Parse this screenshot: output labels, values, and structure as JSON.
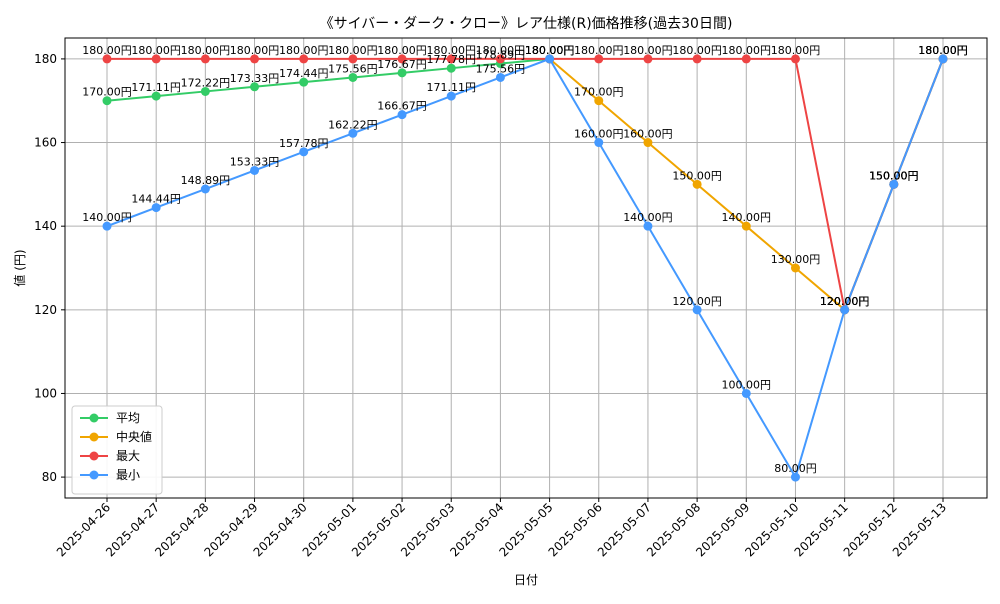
{
  "chart_data": {
    "type": "line",
    "title": "《サイバー・ダーク・クロー》レア仕様(R)価格推移(過去30日間)",
    "xlabel": "日付",
    "ylabel": "値 (円)",
    "ylim": [
      75,
      185
    ],
    "yticks": [
      80,
      100,
      120,
      140,
      160,
      180
    ],
    "grid": true,
    "legend_position": "lower-left",
    "value_suffix": "円",
    "categories": [
      "2025-04-26",
      "2025-04-27",
      "2025-04-28",
      "2025-04-29",
      "2025-04-30",
      "2025-05-01",
      "2025-05-02",
      "2025-05-03",
      "2025-05-04",
      "2025-05-05",
      "2025-05-06",
      "2025-05-07",
      "2025-05-08",
      "2025-05-09",
      "2025-05-10",
      "2025-05-11",
      "2025-05-12",
      "2025-05-13"
    ],
    "series": [
      {
        "name": "平均",
        "color": "#33cc66",
        "values": [
          170.0,
          171.11,
          172.22,
          173.33,
          174.44,
          175.56,
          176.67,
          177.78,
          178.89,
          180.0,
          null,
          null,
          null,
          null,
          null,
          120.0,
          150.0,
          180.0
        ]
      },
      {
        "name": "中央値",
        "color": "#f0a500",
        "values": [
          null,
          null,
          null,
          null,
          null,
          null,
          null,
          null,
          null,
          180.0,
          170.0,
          160.0,
          150.0,
          140.0,
          130.0,
          120.0,
          150.0,
          180.0
        ]
      },
      {
        "name": "最大",
        "color": "#ee4444",
        "values": [
          180.0,
          180.0,
          180.0,
          180.0,
          180.0,
          180.0,
          180.0,
          180.0,
          180.0,
          180.0,
          180.0,
          180.0,
          180.0,
          180.0,
          180.0,
          120.0,
          150.0,
          180.0
        ]
      },
      {
        "name": "最小",
        "color": "#4499ff",
        "values": [
          140.0,
          144.44,
          148.89,
          153.33,
          157.78,
          162.22,
          166.67,
          171.11,
          175.56,
          180.0,
          160.0,
          140.0,
          120.0,
          100.0,
          80.0,
          120.0,
          150.0,
          180.0
        ]
      }
    ]
  }
}
